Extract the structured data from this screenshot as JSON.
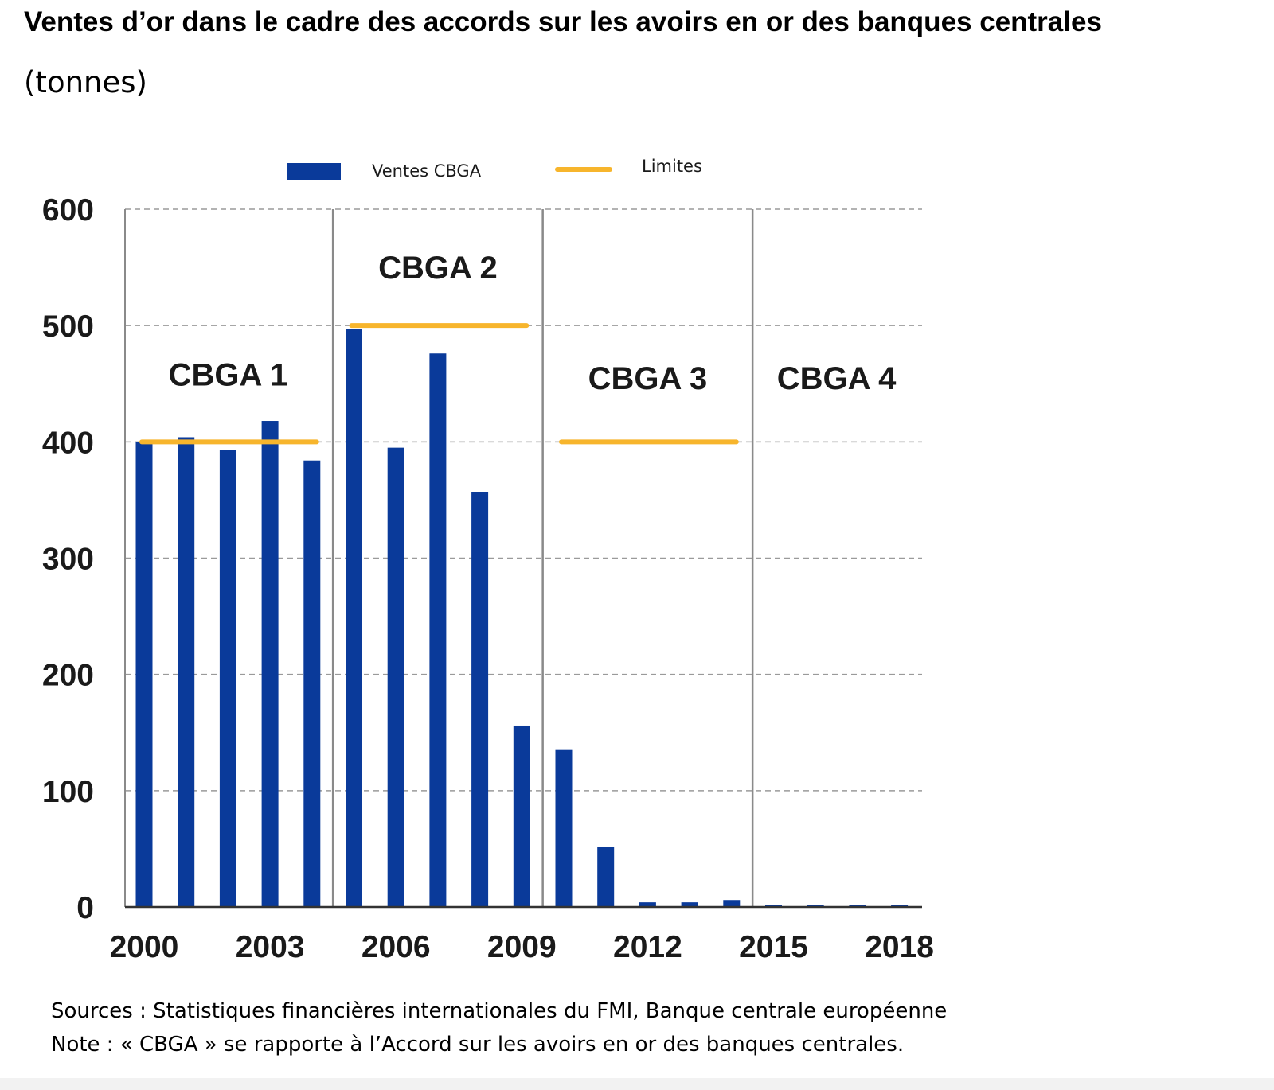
{
  "chart_data": {
    "type": "bar",
    "title": "Ventes d’or dans le cadre des accords sur les avoirs en or des banques centrales",
    "subtitle": "(tonnes)",
    "x": [
      2000,
      2001,
      2002,
      2003,
      2004,
      2005,
      2006,
      2007,
      2008,
      2009,
      2010,
      2011,
      2012,
      2013,
      2014,
      2015,
      2016,
      2017,
      2018
    ],
    "x_tick_labels": [
      "2000",
      "2003",
      "2006",
      "2009",
      "2012",
      "2015",
      "2018"
    ],
    "x_tick_values": [
      2000,
      2003,
      2006,
      2009,
      2012,
      2015,
      2018
    ],
    "ylim": [
      0,
      600
    ],
    "y_ticks": [
      0,
      100,
      200,
      300,
      400,
      500,
      600
    ],
    "grid": true,
    "legend_position": "top",
    "series": [
      {
        "name": "Ventes CBGA",
        "type": "bar",
        "color": "#0a3a9a",
        "values": [
          400,
          404,
          393,
          418,
          384,
          497,
          395,
          476,
          357,
          156,
          135,
          52,
          4,
          4,
          6,
          2,
          2,
          2,
          2
        ]
      },
      {
        "name": "Limites",
        "type": "segment",
        "color": "#f7b52c",
        "segments": [
          {
            "from": 2000,
            "to": 2004,
            "value": 400
          },
          {
            "from": 2005,
            "to": 2009,
            "value": 500
          },
          {
            "from": 2010,
            "to": 2014,
            "value": 400
          }
        ]
      }
    ],
    "periods": [
      {
        "label": "CBGA 1",
        "from": 2000,
        "to": 2004,
        "label_value": 458
      },
      {
        "label": "CBGA 2",
        "from": 2005,
        "to": 2009,
        "label_value": 550
      },
      {
        "label": "CBGA 3",
        "from": 2010,
        "to": 2014,
        "label_value": 455
      },
      {
        "label": "CBGA 4",
        "from": 2015,
        "to": 2018,
        "label_value": 455
      }
    ]
  },
  "footer": {
    "sources": "Sources : Statistiques financières internationales du FMI, Banque centrale européenne",
    "note": "Note : « CBGA » se rapporte à l’Accord sur les avoirs en or des banques centrales."
  }
}
